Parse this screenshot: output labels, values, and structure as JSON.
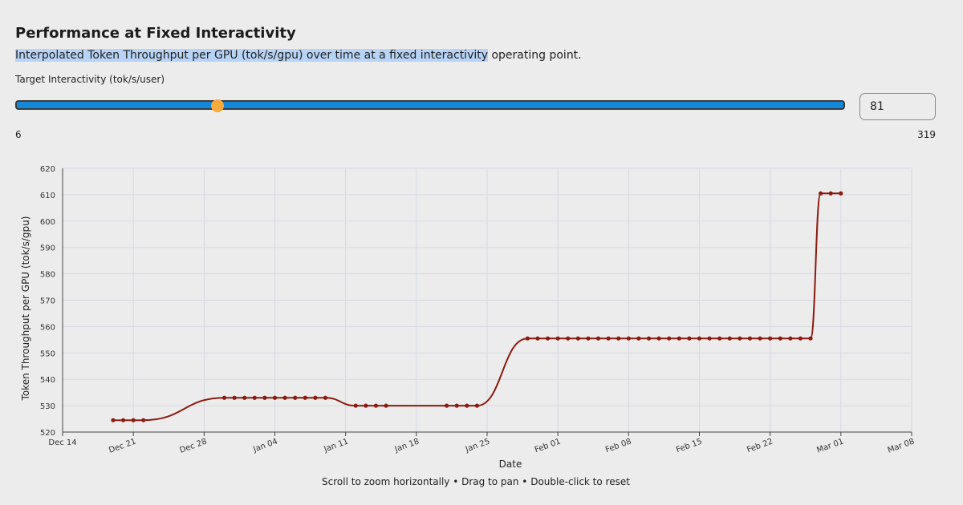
{
  "header": {
    "title": "Performance at Fixed Interactivity",
    "subtitle_highlighted": "Interpolated Token Throughput per GPU (tok/s/gpu) over time at a fixed interactivity",
    "subtitle_rest": " operating point."
  },
  "slider": {
    "label": "Target Interactivity (tok/s/user)",
    "min": 6,
    "max": 319,
    "value": 81,
    "min_label": "6",
    "max_label": "319",
    "value_label": "81",
    "track_color": "#1387d8",
    "thumb_color": "#f7a93a"
  },
  "chart_data": {
    "type": "line",
    "xlabel": "Date",
    "ylabel": "Token Throughput per GPU (tok/s/gpu)",
    "ylim": [
      520,
      620
    ],
    "yticks": [
      520,
      530,
      540,
      550,
      560,
      570,
      580,
      590,
      600,
      610,
      620
    ],
    "xlim": [
      "Dec 14",
      "Mar 08"
    ],
    "xtick_labels": [
      "Dec 14",
      "Dec 21",
      "Dec 28",
      "Jan 04",
      "Jan 11",
      "Jan 18",
      "Jan 25",
      "Feb 01",
      "Feb 08",
      "Feb 15",
      "Feb 22",
      "Mar 01",
      "Mar 08"
    ],
    "grid": true,
    "line_color": "#8b1a10",
    "marker_color": "#8b1a10",
    "series": [
      {
        "x": [
          "Dec 19",
          "Dec 20",
          "Dec 21",
          "Dec 22",
          "Dec 30",
          "Dec 31",
          "Jan 01",
          "Jan 02",
          "Jan 03",
          "Jan 04",
          "Jan 05",
          "Jan 06",
          "Jan 07",
          "Jan 08",
          "Jan 09",
          "Jan 12",
          "Jan 13",
          "Jan 14",
          "Jan 15",
          "Jan 21",
          "Jan 22",
          "Jan 23",
          "Jan 24",
          "Jan 29",
          "Jan 30",
          "Jan 31",
          "Feb 01",
          "Feb 02",
          "Feb 03",
          "Feb 04",
          "Feb 05",
          "Feb 06",
          "Feb 07",
          "Feb 08",
          "Feb 09",
          "Feb 10",
          "Feb 11",
          "Feb 12",
          "Feb 13",
          "Feb 14",
          "Feb 15",
          "Feb 16",
          "Feb 17",
          "Feb 18",
          "Feb 19",
          "Feb 20",
          "Feb 21",
          "Feb 22",
          "Feb 23",
          "Feb 24",
          "Feb 25",
          "Feb 26",
          "Feb 27",
          "Feb 28",
          "Mar 01"
        ],
        "y": [
          524.5,
          524.5,
          524.5,
          524.5,
          533,
          533,
          533,
          533,
          533,
          533,
          533,
          533,
          533,
          533,
          533,
          530,
          530,
          530,
          530,
          530,
          530,
          530,
          530,
          555.5,
          555.5,
          555.5,
          555.5,
          555.5,
          555.5,
          555.5,
          555.5,
          555.5,
          555.5,
          555.5,
          555.5,
          555.5,
          555.5,
          555.5,
          555.5,
          555.5,
          555.5,
          555.5,
          555.5,
          555.5,
          555.5,
          555.5,
          555.5,
          555.5,
          555.5,
          555.5,
          555.5,
          555.5,
          610.5,
          610.5,
          610.5
        ]
      }
    ]
  },
  "hint": "Scroll to zoom horizontally • Drag to pan • Double-click to reset"
}
